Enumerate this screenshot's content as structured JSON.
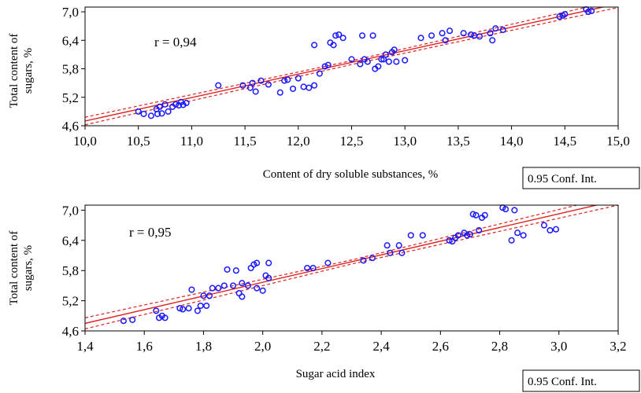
{
  "chart_data": [
    {
      "type": "scatter",
      "xlabel": "Content of dry soluble substances, %",
      "ylabel_line1": "Total content of",
      "ylabel_line2": "sugars, %",
      "annotation": "r = 0,94",
      "legend": "0.95 Conf. Int.",
      "xlim": [
        10.0,
        15.0
      ],
      "ylim": [
        4.6,
        7.1
      ],
      "xticks": [
        10.0,
        10.5,
        11.0,
        11.5,
        12.0,
        12.5,
        13.0,
        13.5,
        14.0,
        14.5,
        15.0
      ],
      "xtick_labels": [
        "10,0",
        "10,5",
        "11,0",
        "11,5",
        "12,0",
        "12,5",
        "13,0",
        "13,5",
        "14,0",
        "14,5",
        "15,0"
      ],
      "yticks": [
        4.6,
        5.2,
        5.8,
        6.4,
        7.0
      ],
      "ytick_labels": [
        "4,6",
        "5,2",
        "5,8",
        "6,4",
        "7,0"
      ],
      "fit": {
        "x": [
          10.0,
          15.0
        ],
        "y": [
          4.7,
          7.17
        ]
      },
      "ci_upper": {
        "x": [
          10.0,
          12.5,
          15.0
        ],
        "y": [
          4.78,
          5.97,
          7.25
        ]
      },
      "ci_lower": {
        "x": [
          10.0,
          12.5,
          15.0
        ],
        "y": [
          4.62,
          5.89,
          7.09
        ]
      },
      "marker_color": "#1a1aff",
      "line_color": "#e02020",
      "points": [
        [
          10.5,
          4.9
        ],
        [
          10.55,
          4.85
        ],
        [
          10.62,
          4.81
        ],
        [
          10.67,
          4.95
        ],
        [
          10.68,
          4.85
        ],
        [
          10.7,
          5.0
        ],
        [
          10.72,
          4.86
        ],
        [
          10.75,
          5.05
        ],
        [
          10.78,
          4.9
        ],
        [
          10.82,
          5.0
        ],
        [
          10.85,
          5.05
        ],
        [
          10.88,
          5.03
        ],
        [
          10.9,
          5.1
        ],
        [
          10.92,
          5.04
        ],
        [
          10.95,
          5.08
        ],
        [
          11.25,
          5.45
        ],
        [
          11.48,
          5.45
        ],
        [
          11.55,
          5.4
        ],
        [
          11.57,
          5.5
        ],
        [
          11.6,
          5.32
        ],
        [
          11.65,
          5.55
        ],
        [
          11.72,
          5.47
        ],
        [
          11.83,
          5.3
        ],
        [
          11.87,
          5.55
        ],
        [
          11.9,
          5.57
        ],
        [
          11.95,
          5.38
        ],
        [
          12.0,
          5.6
        ],
        [
          12.05,
          5.42
        ],
        [
          12.1,
          5.4
        ],
        [
          12.15,
          5.45
        ],
        [
          12.15,
          6.3
        ],
        [
          12.2,
          5.7
        ],
        [
          12.25,
          5.85
        ],
        [
          12.28,
          5.88
        ],
        [
          12.3,
          6.35
        ],
        [
          12.33,
          6.3
        ],
        [
          12.35,
          6.5
        ],
        [
          12.38,
          6.52
        ],
        [
          12.42,
          6.45
        ],
        [
          12.5,
          6.0
        ],
        [
          12.58,
          5.9
        ],
        [
          12.6,
          6.5
        ],
        [
          12.62,
          6.0
        ],
        [
          12.65,
          5.95
        ],
        [
          12.7,
          6.5
        ],
        [
          12.72,
          5.8
        ],
        [
          12.75,
          5.85
        ],
        [
          12.78,
          6.0
        ],
        [
          12.8,
          6.0
        ],
        [
          12.82,
          6.1
        ],
        [
          12.85,
          5.95
        ],
        [
          12.88,
          6.15
        ],
        [
          12.9,
          6.2
        ],
        [
          12.92,
          5.95
        ],
        [
          13.0,
          5.98
        ],
        [
          13.15,
          6.45
        ],
        [
          13.25,
          6.5
        ],
        [
          13.35,
          6.55
        ],
        [
          13.38,
          6.4
        ],
        [
          13.42,
          6.6
        ],
        [
          13.55,
          6.55
        ],
        [
          13.62,
          6.52
        ],
        [
          13.65,
          6.5
        ],
        [
          13.7,
          6.48
        ],
        [
          13.8,
          6.55
        ],
        [
          13.82,
          6.4
        ],
        [
          13.85,
          6.65
        ],
        [
          13.92,
          6.62
        ],
        [
          14.45,
          6.9
        ],
        [
          14.48,
          6.92
        ],
        [
          14.5,
          6.95
        ],
        [
          14.7,
          7.05
        ],
        [
          14.72,
          7.0
        ],
        [
          14.75,
          7.02
        ]
      ]
    },
    {
      "type": "scatter",
      "xlabel": "Sugar acid index",
      "ylabel_line1": "Total content of",
      "ylabel_line2": "sugars, %",
      "annotation": "r = 0,95",
      "legend": "0.95 Conf. Int.",
      "xlim": [
        1.4,
        3.2
      ],
      "ylim": [
        4.6,
        7.1
      ],
      "xticks": [
        1.4,
        1.6,
        1.8,
        2.0,
        2.2,
        2.4,
        2.6,
        2.8,
        3.0,
        3.2
      ],
      "xtick_labels": [
        "1,4",
        "1,6",
        "1,8",
        "2,0",
        "2,2",
        "2,4",
        "2,6",
        "2,8",
        "3,0",
        "3,2"
      ],
      "yticks": [
        4.6,
        5.2,
        5.8,
        6.4,
        7.0
      ],
      "ytick_labels": [
        "4,6",
        "5,2",
        "5,8",
        "6,4",
        "7,0"
      ],
      "fit": {
        "x": [
          1.4,
          3.2
        ],
        "y": [
          4.75,
          7.2
        ]
      },
      "ci_upper": {
        "x": [
          1.4,
          2.3,
          3.2
        ],
        "y": [
          4.86,
          6.01,
          7.3
        ]
      },
      "ci_lower": {
        "x": [
          1.4,
          2.3,
          3.2
        ],
        "y": [
          4.64,
          5.93,
          7.1
        ]
      },
      "marker_color": "#1a1aff",
      "line_color": "#e02020",
      "points": [
        [
          1.53,
          4.8
        ],
        [
          1.56,
          4.82
        ],
        [
          1.64,
          5.0
        ],
        [
          1.65,
          4.86
        ],
        [
          1.66,
          4.9
        ],
        [
          1.67,
          4.86
        ],
        [
          1.72,
          5.05
        ],
        [
          1.73,
          5.03
        ],
        [
          1.75,
          5.05
        ],
        [
          1.76,
          5.42
        ],
        [
          1.78,
          5.0
        ],
        [
          1.79,
          5.1
        ],
        [
          1.8,
          5.3
        ],
        [
          1.81,
          5.1
        ],
        [
          1.82,
          5.3
        ],
        [
          1.83,
          5.45
        ],
        [
          1.85,
          5.45
        ],
        [
          1.87,
          5.5
        ],
        [
          1.88,
          5.82
        ],
        [
          1.9,
          5.5
        ],
        [
          1.91,
          5.8
        ],
        [
          1.92,
          5.35
        ],
        [
          1.93,
          5.55
        ],
        [
          1.93,
          5.28
        ],
        [
          1.95,
          5.5
        ],
        [
          1.96,
          5.85
        ],
        [
          1.97,
          5.92
        ],
        [
          1.98,
          5.95
        ],
        [
          1.98,
          5.45
        ],
        [
          2.0,
          5.4
        ],
        [
          2.01,
          5.7
        ],
        [
          2.02,
          5.95
        ],
        [
          2.02,
          5.65
        ],
        [
          2.15,
          5.85
        ],
        [
          2.17,
          5.85
        ],
        [
          2.22,
          5.95
        ],
        [
          2.34,
          6.0
        ],
        [
          2.37,
          6.05
        ],
        [
          2.42,
          6.3
        ],
        [
          2.43,
          6.15
        ],
        [
          2.46,
          6.3
        ],
        [
          2.47,
          6.15
        ],
        [
          2.5,
          6.5
        ],
        [
          2.54,
          6.5
        ],
        [
          2.63,
          6.4
        ],
        [
          2.64,
          6.38
        ],
        [
          2.65,
          6.45
        ],
        [
          2.66,
          6.5
        ],
        [
          2.68,
          6.55
        ],
        [
          2.69,
          6.5
        ],
        [
          2.7,
          6.52
        ],
        [
          2.71,
          6.92
        ],
        [
          2.72,
          6.9
        ],
        [
          2.73,
          6.6
        ],
        [
          2.74,
          6.85
        ],
        [
          2.75,
          6.9
        ],
        [
          2.81,
          7.05
        ],
        [
          2.82,
          7.02
        ],
        [
          2.84,
          6.4
        ],
        [
          2.85,
          7.0
        ],
        [
          2.86,
          6.55
        ],
        [
          2.88,
          6.5
        ],
        [
          2.95,
          6.7
        ],
        [
          2.97,
          6.6
        ],
        [
          2.99,
          6.62
        ]
      ]
    }
  ]
}
